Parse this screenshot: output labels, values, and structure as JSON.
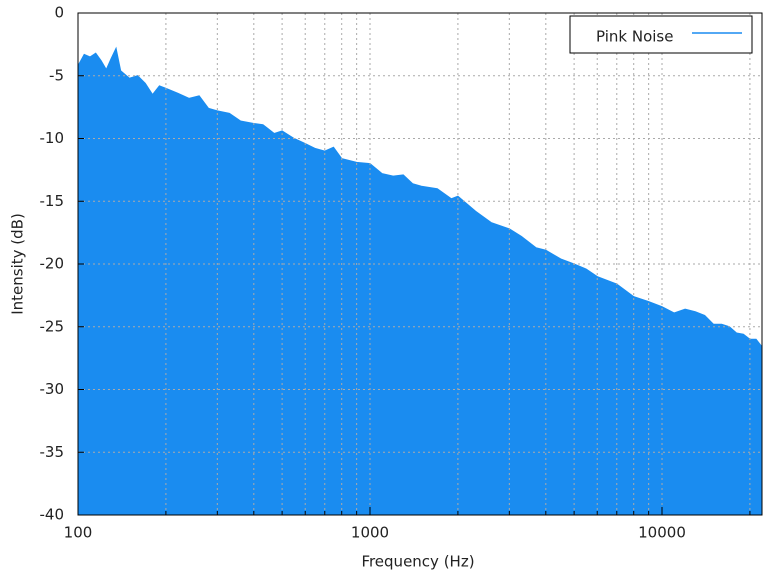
{
  "chart_data": {
    "type": "area",
    "xlabel": "Frequency (Hz)",
    "ylabel": "Intensity (dB)",
    "xscale": "log",
    "xlim": [
      100,
      22000
    ],
    "xticks": [
      100,
      1000,
      10000
    ],
    "xminorticks": [
      200,
      300,
      400,
      500,
      600,
      700,
      800,
      900,
      2000,
      3000,
      4000,
      5000,
      6000,
      7000,
      8000,
      9000,
      20000
    ],
    "ylim": [
      -40,
      0
    ],
    "yticks": [
      0,
      -5,
      -10,
      -15,
      -20,
      -25,
      -30,
      -35,
      -40
    ],
    "grid": true,
    "legend": "upper right",
    "x": [
      100,
      105,
      110,
      115,
      120,
      125,
      130,
      135,
      140,
      150,
      160,
      170,
      180,
      190,
      200,
      220,
      240,
      260,
      280,
      300,
      330,
      360,
      400,
      430,
      470,
      500,
      550,
      600,
      650,
      700,
      750,
      800,
      900,
      1000,
      1100,
      1200,
      1300,
      1400,
      1500,
      1700,
      1900,
      2000,
      2300,
      2600,
      3000,
      3300,
      3700,
      4000,
      4500,
      5000,
      5500,
      6000,
      7000,
      8000,
      9000,
      10000,
      11000,
      12000,
      13000,
      14000,
      15000,
      16000,
      17000,
      18000,
      19000,
      20000,
      21000,
      22000
    ],
    "series": [
      {
        "name": "Pink Noise",
        "color": "#1a8cf0",
        "values": [
          -4.2,
          -3.3,
          -3.5,
          -3.2,
          -3.8,
          -4.5,
          -3.6,
          -2.8,
          -4.6,
          -5.2,
          -5.0,
          -5.6,
          -6.5,
          -5.8,
          -6.0,
          -6.4,
          -6.8,
          -6.6,
          -7.6,
          -7.8,
          -8.0,
          -8.6,
          -8.8,
          -8.9,
          -9.6,
          -9.4,
          -10.0,
          -10.4,
          -10.8,
          -11.0,
          -10.7,
          -11.6,
          -11.9,
          -12.0,
          -12.8,
          -13.0,
          -12.9,
          -13.6,
          -13.8,
          -14.0,
          -14.8,
          -14.6,
          -15.8,
          -16.7,
          -17.2,
          -17.8,
          -18.7,
          -18.9,
          -19.6,
          -20.0,
          -20.4,
          -21.0,
          -21.6,
          -22.6,
          -23.0,
          -23.4,
          -23.9,
          -23.6,
          -23.8,
          -24.1,
          -24.8,
          -24.8,
          -25.0,
          -25.5,
          -25.6,
          -26.0,
          -26.0,
          -26.6
        ]
      }
    ]
  }
}
